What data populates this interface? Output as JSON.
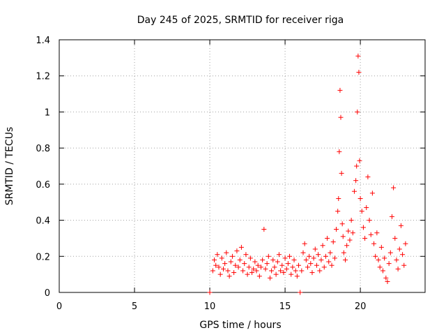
{
  "chart_data": {
    "type": "scatter",
    "title": "Day 245 of 2025, SRMTID for receiver riga",
    "xlabel": "GPS time / hours",
    "ylabel": "SRMTID / TECUs",
    "xlim": [
      0,
      24.3
    ],
    "ylim": [
      0,
      1.4
    ],
    "x_ticks": [
      0,
      5,
      10,
      15,
      20
    ],
    "x_tick_labels": [
      "0",
      "5",
      "10",
      "15",
      "20"
    ],
    "y_ticks": [
      0,
      0.2,
      0.4,
      0.6,
      0.8,
      1,
      1.2,
      1.4
    ],
    "y_tick_labels": [
      "0",
      "0.2",
      "0.4",
      "0.6",
      "0.8",
      "1",
      "1.2",
      "1.4"
    ],
    "grid": true,
    "marker": "+",
    "color": "#ff0000",
    "series": [
      {
        "name": "SRMTID",
        "points": [
          [
            10.0,
            0.0
          ],
          [
            10.2,
            0.12
          ],
          [
            10.3,
            0.18
          ],
          [
            10.4,
            0.15
          ],
          [
            10.5,
            0.21
          ],
          [
            10.6,
            0.14
          ],
          [
            10.7,
            0.1
          ],
          [
            10.8,
            0.19
          ],
          [
            10.9,
            0.13
          ],
          [
            11.0,
            0.16
          ],
          [
            11.1,
            0.22
          ],
          [
            11.2,
            0.12
          ],
          [
            11.3,
            0.09
          ],
          [
            11.4,
            0.17
          ],
          [
            11.5,
            0.2
          ],
          [
            11.6,
            0.11
          ],
          [
            11.7,
            0.15
          ],
          [
            11.8,
            0.23
          ],
          [
            11.9,
            0.14
          ],
          [
            12.0,
            0.18
          ],
          [
            12.1,
            0.25
          ],
          [
            12.2,
            0.12
          ],
          [
            12.3,
            0.16
          ],
          [
            12.4,
            0.21
          ],
          [
            12.5,
            0.1
          ],
          [
            12.6,
            0.14
          ],
          [
            12.7,
            0.19
          ],
          [
            12.8,
            0.11
          ],
          [
            12.9,
            0.13
          ],
          [
            13.0,
            0.17
          ],
          [
            13.1,
            0.12
          ],
          [
            13.2,
            0.15
          ],
          [
            13.3,
            0.09
          ],
          [
            13.4,
            0.14
          ],
          [
            13.5,
            0.18
          ],
          [
            13.6,
            0.35
          ],
          [
            13.7,
            0.13
          ],
          [
            13.8,
            0.16
          ],
          [
            13.9,
            0.2
          ],
          [
            14.0,
            0.08
          ],
          [
            14.1,
            0.12
          ],
          [
            14.2,
            0.18
          ],
          [
            14.3,
            0.14
          ],
          [
            14.4,
            0.1
          ],
          [
            14.5,
            0.17
          ],
          [
            14.6,
            0.21
          ],
          [
            14.7,
            0.12
          ],
          [
            14.8,
            0.15
          ],
          [
            14.9,
            0.11
          ],
          [
            15.0,
            0.19
          ],
          [
            15.1,
            0.13
          ],
          [
            15.2,
            0.16
          ],
          [
            15.3,
            0.2
          ],
          [
            15.4,
            0.1
          ],
          [
            15.5,
            0.14
          ],
          [
            15.6,
            0.18
          ],
          [
            15.7,
            0.12
          ],
          [
            15.8,
            0.09
          ],
          [
            15.9,
            0.15
          ],
          [
            16.0,
            0.0
          ],
          [
            16.1,
            0.12
          ],
          [
            16.2,
            0.22
          ],
          [
            16.3,
            0.27
          ],
          [
            16.4,
            0.18
          ],
          [
            16.5,
            0.14
          ],
          [
            16.6,
            0.2
          ],
          [
            16.7,
            0.16
          ],
          [
            16.8,
            0.11
          ],
          [
            16.9,
            0.19
          ],
          [
            17.0,
            0.24
          ],
          [
            17.1,
            0.15
          ],
          [
            17.2,
            0.21
          ],
          [
            17.3,
            0.12
          ],
          [
            17.4,
            0.18
          ],
          [
            17.5,
            0.26
          ],
          [
            17.6,
            0.14
          ],
          [
            17.7,
            0.2
          ],
          [
            17.8,
            0.3
          ],
          [
            17.9,
            0.17
          ],
          [
            18.0,
            0.22
          ],
          [
            18.1,
            0.15
          ],
          [
            18.2,
            0.28
          ],
          [
            18.3,
            0.19
          ],
          [
            18.4,
            0.35
          ],
          [
            18.5,
            0.45
          ],
          [
            18.55,
            0.52
          ],
          [
            18.6,
            0.78
          ],
          [
            18.65,
            1.12
          ],
          [
            18.7,
            0.97
          ],
          [
            18.75,
            0.66
          ],
          [
            18.8,
            0.38
          ],
          [
            18.85,
            0.31
          ],
          [
            18.9,
            0.22
          ],
          [
            19.0,
            0.18
          ],
          [
            19.1,
            0.26
          ],
          [
            19.2,
            0.34
          ],
          [
            19.3,
            0.29
          ],
          [
            19.4,
            0.4
          ],
          [
            19.5,
            0.33
          ],
          [
            19.6,
            0.56
          ],
          [
            19.7,
            0.62
          ],
          [
            19.75,
            0.7
          ],
          [
            19.8,
            1.0
          ],
          [
            19.85,
            1.31
          ],
          [
            19.9,
            1.22
          ],
          [
            19.95,
            0.73
          ],
          [
            20.0,
            0.52
          ],
          [
            20.1,
            0.45
          ],
          [
            20.2,
            0.36
          ],
          [
            20.3,
            0.3
          ],
          [
            20.4,
            0.47
          ],
          [
            20.5,
            0.64
          ],
          [
            20.6,
            0.4
          ],
          [
            20.7,
            0.32
          ],
          [
            20.8,
            0.55
          ],
          [
            20.9,
            0.27
          ],
          [
            21.0,
            0.2
          ],
          [
            21.1,
            0.33
          ],
          [
            21.2,
            0.18
          ],
          [
            21.3,
            0.14
          ],
          [
            21.4,
            0.25
          ],
          [
            21.5,
            0.12
          ],
          [
            21.6,
            0.19
          ],
          [
            21.7,
            0.08
          ],
          [
            21.8,
            0.06
          ],
          [
            21.9,
            0.16
          ],
          [
            22.0,
            0.22
          ],
          [
            22.1,
            0.42
          ],
          [
            22.2,
            0.58
          ],
          [
            22.3,
            0.3
          ],
          [
            22.4,
            0.18
          ],
          [
            22.5,
            0.13
          ],
          [
            22.6,
            0.24
          ],
          [
            22.7,
            0.37
          ],
          [
            22.8,
            0.21
          ],
          [
            22.9,
            0.15
          ],
          [
            23.0,
            0.27
          ]
        ]
      }
    ]
  }
}
